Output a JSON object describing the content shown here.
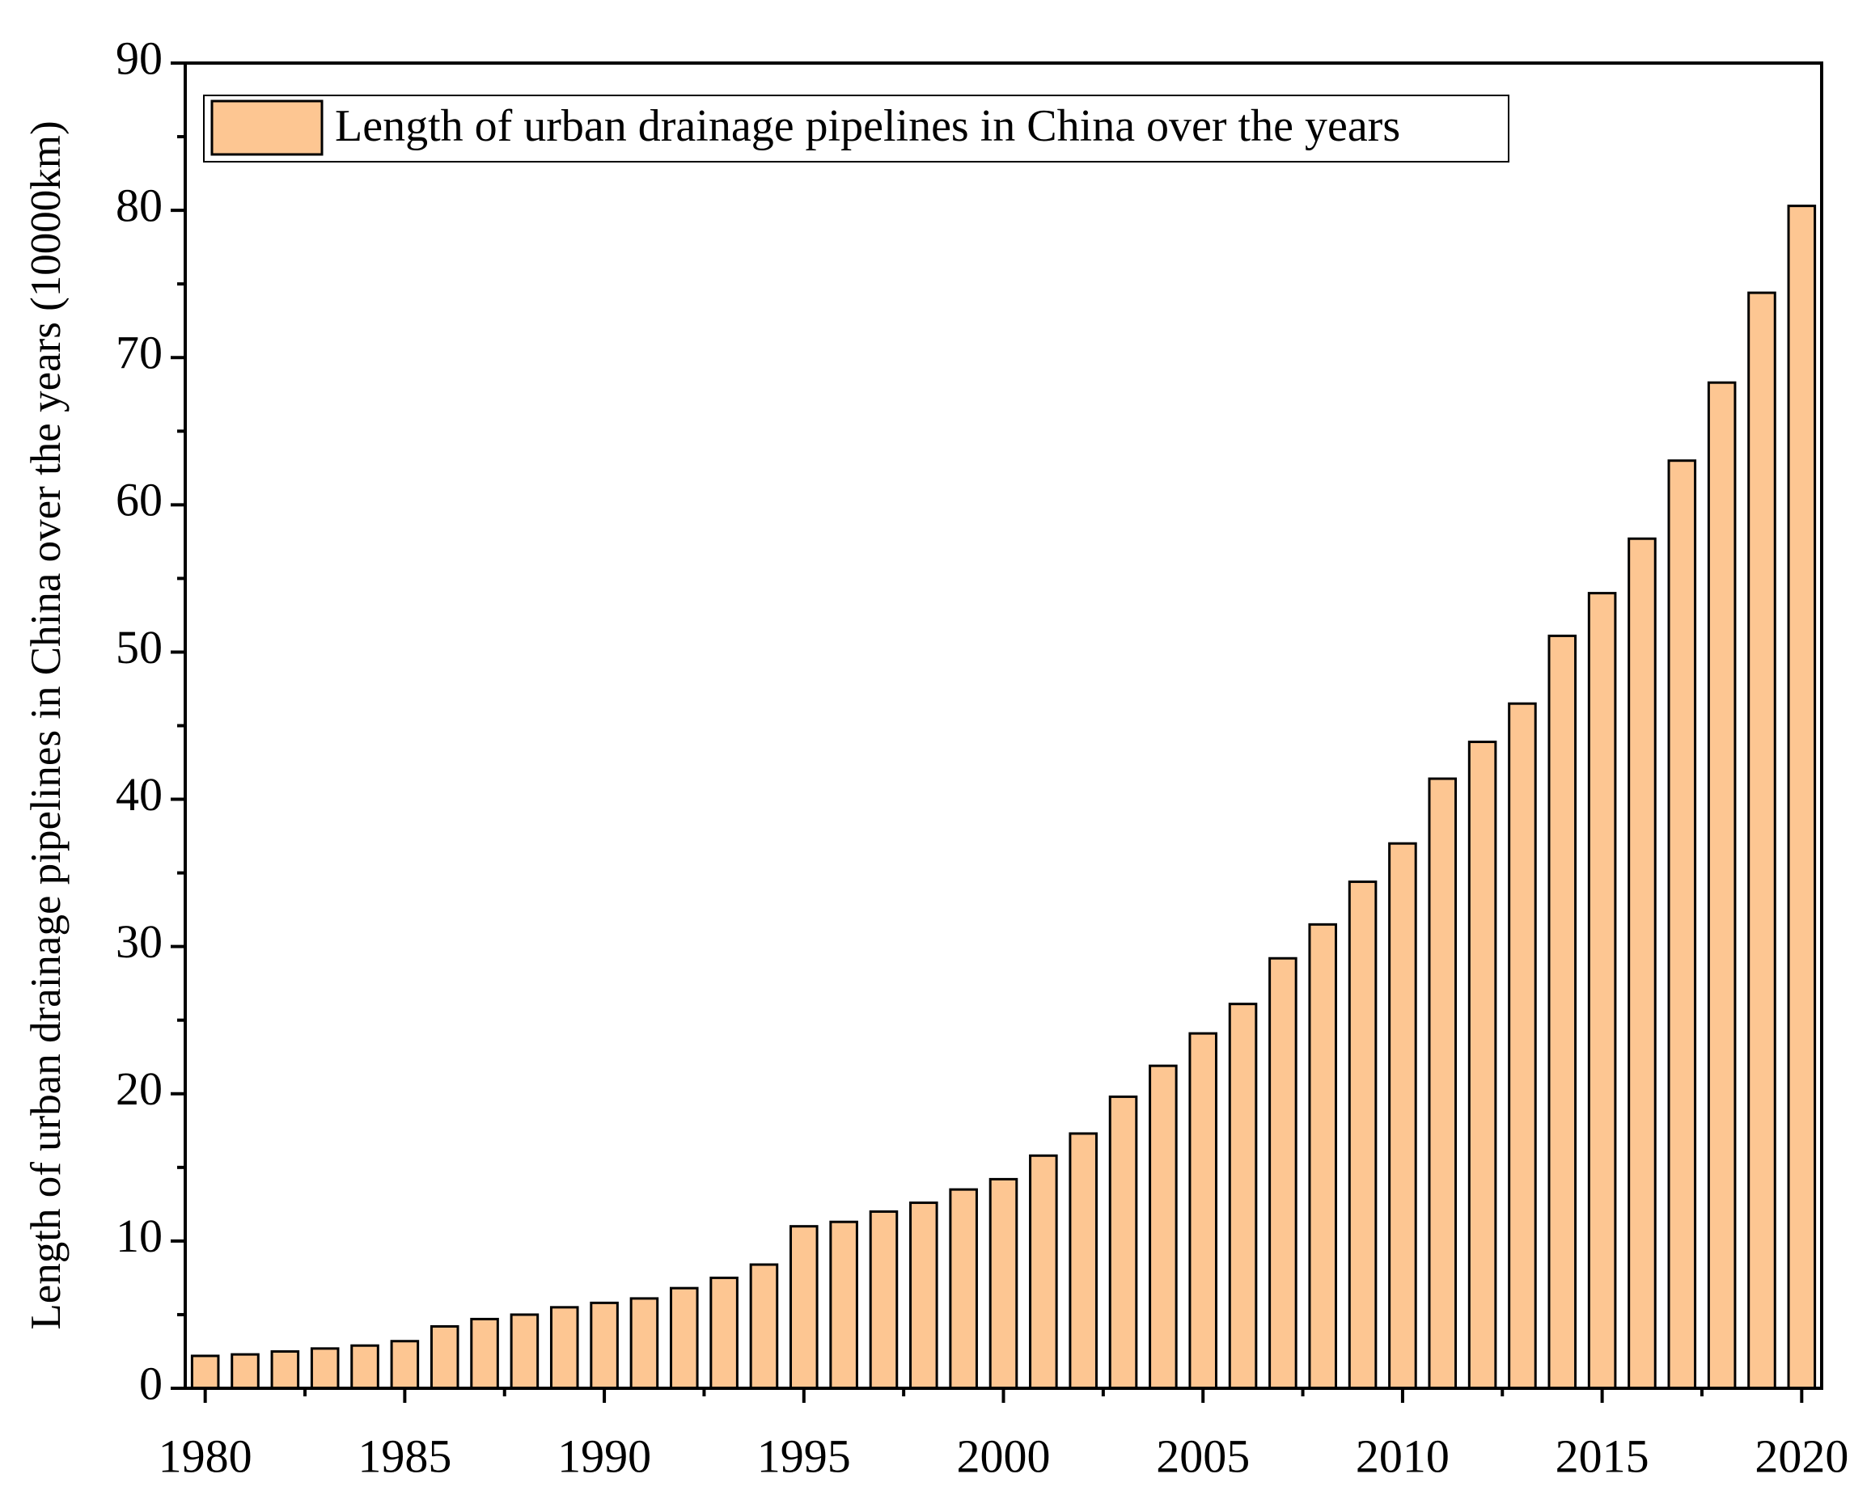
{
  "chart_data": {
    "type": "bar",
    "ylabel": "Length of urban drainage pipelines in China over the years (10000km)",
    "x": [
      1980,
      1981,
      1982,
      1983,
      1984,
      1985,
      1986,
      1987,
      1988,
      1989,
      1990,
      1991,
      1992,
      1993,
      1994,
      1995,
      1996,
      1997,
      1998,
      1999,
      2000,
      2001,
      2002,
      2003,
      2004,
      2005,
      2006,
      2007,
      2008,
      2009,
      2010,
      2011,
      2012,
      2013,
      2014,
      2015,
      2016,
      2017,
      2018,
      2019,
      2020
    ],
    "series": [
      {
        "name": "Length of urban drainage pipelines in China over the years",
        "color": "#fdc692",
        "values": [
          2.2,
          2.3,
          2.5,
          2.7,
          2.9,
          3.2,
          4.2,
          4.7,
          5.0,
          5.5,
          5.8,
          6.1,
          6.8,
          7.5,
          8.4,
          11.0,
          11.3,
          12.0,
          12.6,
          13.5,
          14.2,
          15.8,
          17.3,
          19.8,
          21.9,
          24.1,
          26.1,
          29.2,
          31.5,
          34.4,
          37.0,
          41.4,
          43.9,
          46.5,
          51.1,
          54.0,
          57.7,
          63.0,
          68.3,
          74.4,
          80.3
        ]
      }
    ],
    "xlim": [
      1979.5,
      2020.5
    ],
    "xticks": [
      1980,
      1985,
      1990,
      1995,
      2000,
      2005,
      2010,
      2015,
      2020
    ],
    "ylim": [
      0,
      90
    ],
    "yticks": [
      0,
      10,
      20,
      30,
      40,
      50,
      60,
      70,
      80,
      90
    ],
    "legend": "top-left"
  }
}
